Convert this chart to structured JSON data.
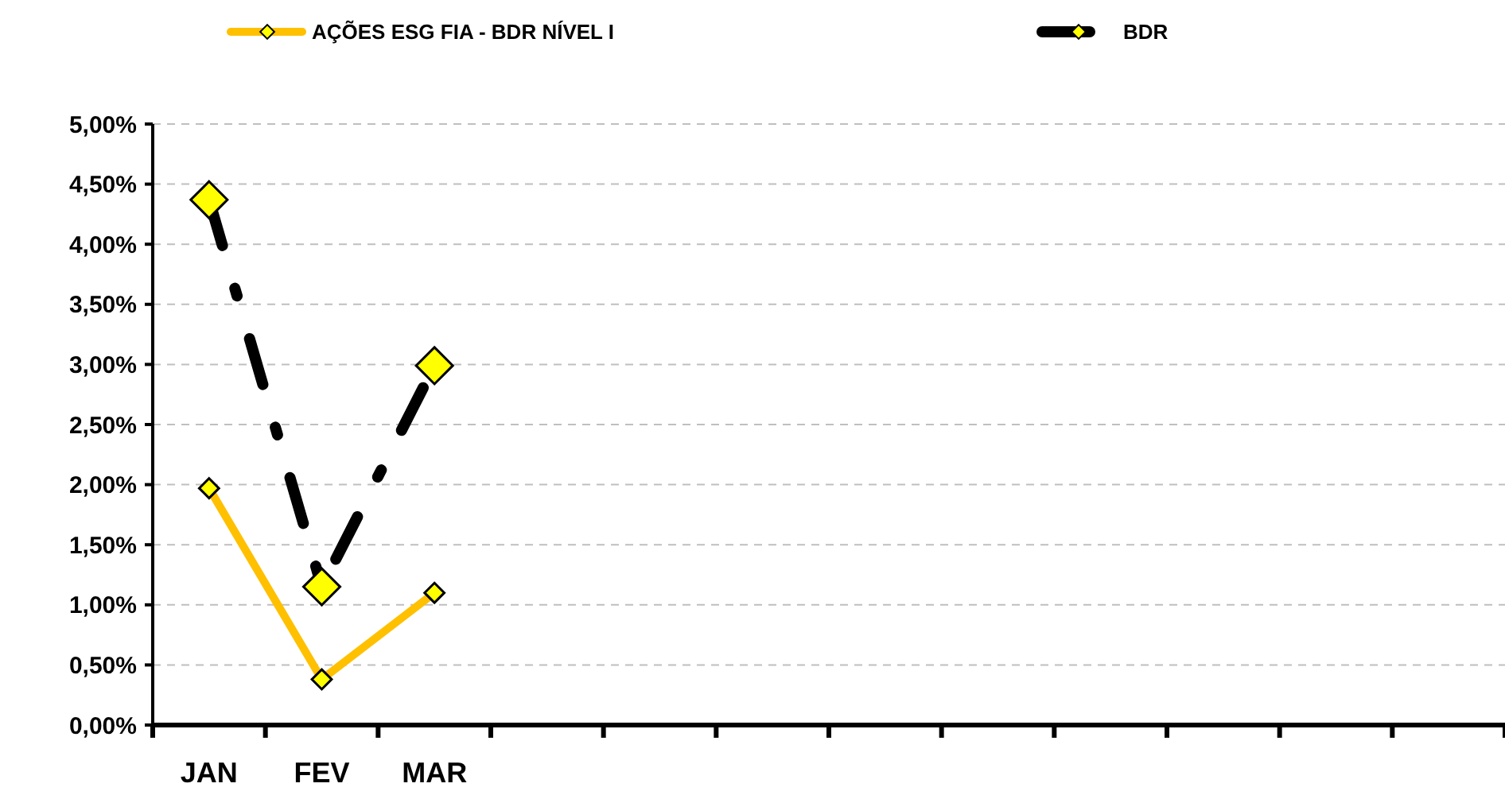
{
  "chart_data": {
    "type": "line",
    "categories": [
      "JAN",
      "FEV",
      "MAR",
      null,
      null,
      null,
      null,
      null,
      null,
      null,
      null,
      null
    ],
    "series": [
      {
        "name": "AÇÕES ESG FIA - BDR NÍVEL I",
        "color": "#ffc000",
        "values": [
          1.97,
          0.38,
          1.1,
          null,
          null,
          null,
          null,
          null,
          null,
          null,
          null,
          null
        ],
        "line_style": "solid"
      },
      {
        "name": "BDR",
        "color": "#000000",
        "values": [
          4.37,
          1.15,
          2.99,
          null,
          null,
          null,
          null,
          null,
          null,
          null,
          null,
          null
        ],
        "line_style": "dashed"
      }
    ],
    "ylim": [
      0,
      5
    ],
    "yticks": [
      {
        "value": 0,
        "label": "0,00%"
      },
      {
        "value": 0.5,
        "label": "0,50%"
      },
      {
        "value": 1,
        "label": "1,00%"
      },
      {
        "value": 1.5,
        "label": "1,50%"
      },
      {
        "value": 2,
        "label": "2,00%"
      },
      {
        "value": 2.5,
        "label": "2,50%"
      },
      {
        "value": 3,
        "label": "3,00%"
      },
      {
        "value": 3.5,
        "label": "3,50%"
      },
      {
        "value": 4,
        "label": "4,00%"
      },
      {
        "value": 4.5,
        "label": "4,50%"
      },
      {
        "value": 5,
        "label": "5,00%"
      }
    ],
    "grid": "y",
    "legend": "top",
    "marker": "diamond"
  }
}
